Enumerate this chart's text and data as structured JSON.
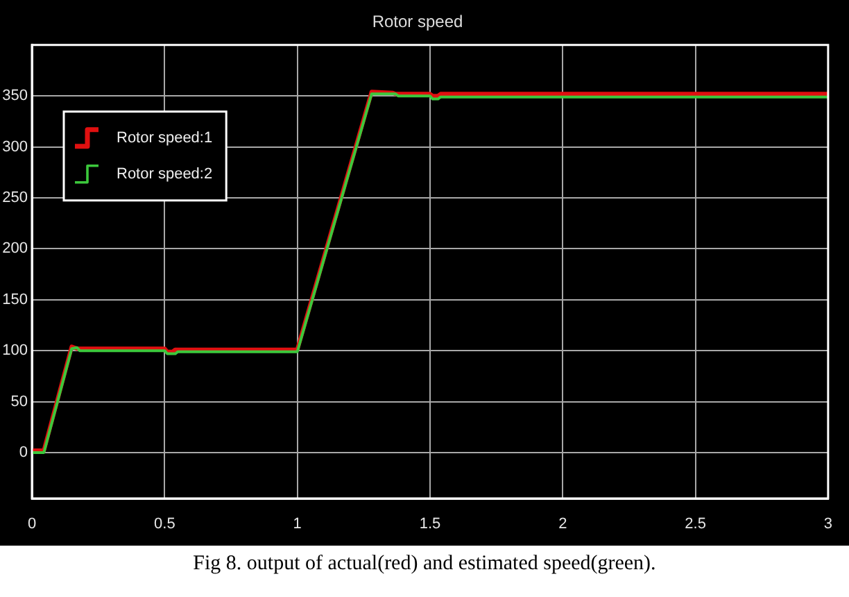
{
  "chart_data": {
    "type": "line",
    "title": "Rotor speed",
    "annotations": [
      "Fig 8. output of actual(red) and estimated speed(green)."
    ],
    "xlim": [
      0,
      3
    ],
    "xticks": [
      0,
      0.5,
      1,
      1.5,
      2,
      2.5,
      3
    ],
    "ylim": [
      -45,
      400
    ],
    "yticks": [
      0,
      50,
      100,
      150,
      200,
      250,
      300,
      350
    ],
    "grid": true,
    "legend": "top left",
    "marker": "none",
    "line_style": "solid",
    "series": [
      {
        "name": "Rotor speed:1",
        "color": "#e01010",
        "x": [
          0,
          0.045,
          0.15,
          0.17,
          0.5,
          0.51,
          0.53,
          0.54,
          1.0,
          1.28,
          1.36,
          1.37,
          1.5,
          1.51,
          1.53,
          1.54,
          3
        ],
        "values": [
          2,
          2,
          104,
          102,
          102,
          99,
          99,
          101,
          101,
          354,
          353,
          352,
          352,
          350,
          350,
          352,
          352
        ]
      },
      {
        "name": "Rotor speed:2",
        "color": "#3cc83c",
        "x": [
          0,
          0.045,
          0.15,
          0.17,
          0.18,
          0.5,
          0.51,
          0.54,
          0.55,
          1.0,
          1.28,
          1.37,
          1.38,
          1.5,
          1.51,
          1.53,
          1.54,
          3
        ],
        "values": [
          0,
          0,
          102,
          103,
          100,
          100,
          97,
          97,
          99,
          99,
          352,
          352,
          350,
          350,
          347,
          347,
          349,
          349
        ]
      }
    ]
  }
}
